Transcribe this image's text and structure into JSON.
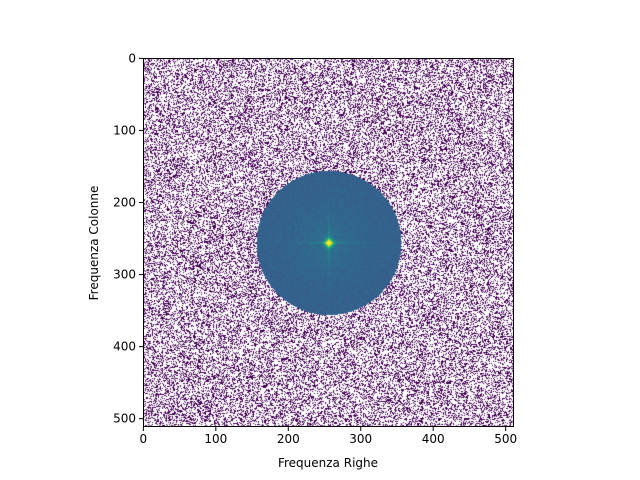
{
  "chart_data": {
    "type": "heatmap",
    "title": "",
    "xlabel": "Frequenza Righe",
    "ylabel": "Frequenza Colonne",
    "xlim": [
      -0.5,
      511.5
    ],
    "ylim": [
      511.5,
      -0.5
    ],
    "y_axis_inverted": true,
    "xticks": [
      0,
      100,
      200,
      300,
      400,
      500
    ],
    "yticks": [
      0,
      100,
      200,
      300,
      400,
      500
    ],
    "image_size": [
      512,
      512
    ],
    "colormap": "viridis",
    "masked_color": "#ffffff",
    "background_speckle_color": "#440154",
    "disk": {
      "center": [
        256,
        256
      ],
      "radius": 100
    },
    "grid": false,
    "legend": "none"
  }
}
